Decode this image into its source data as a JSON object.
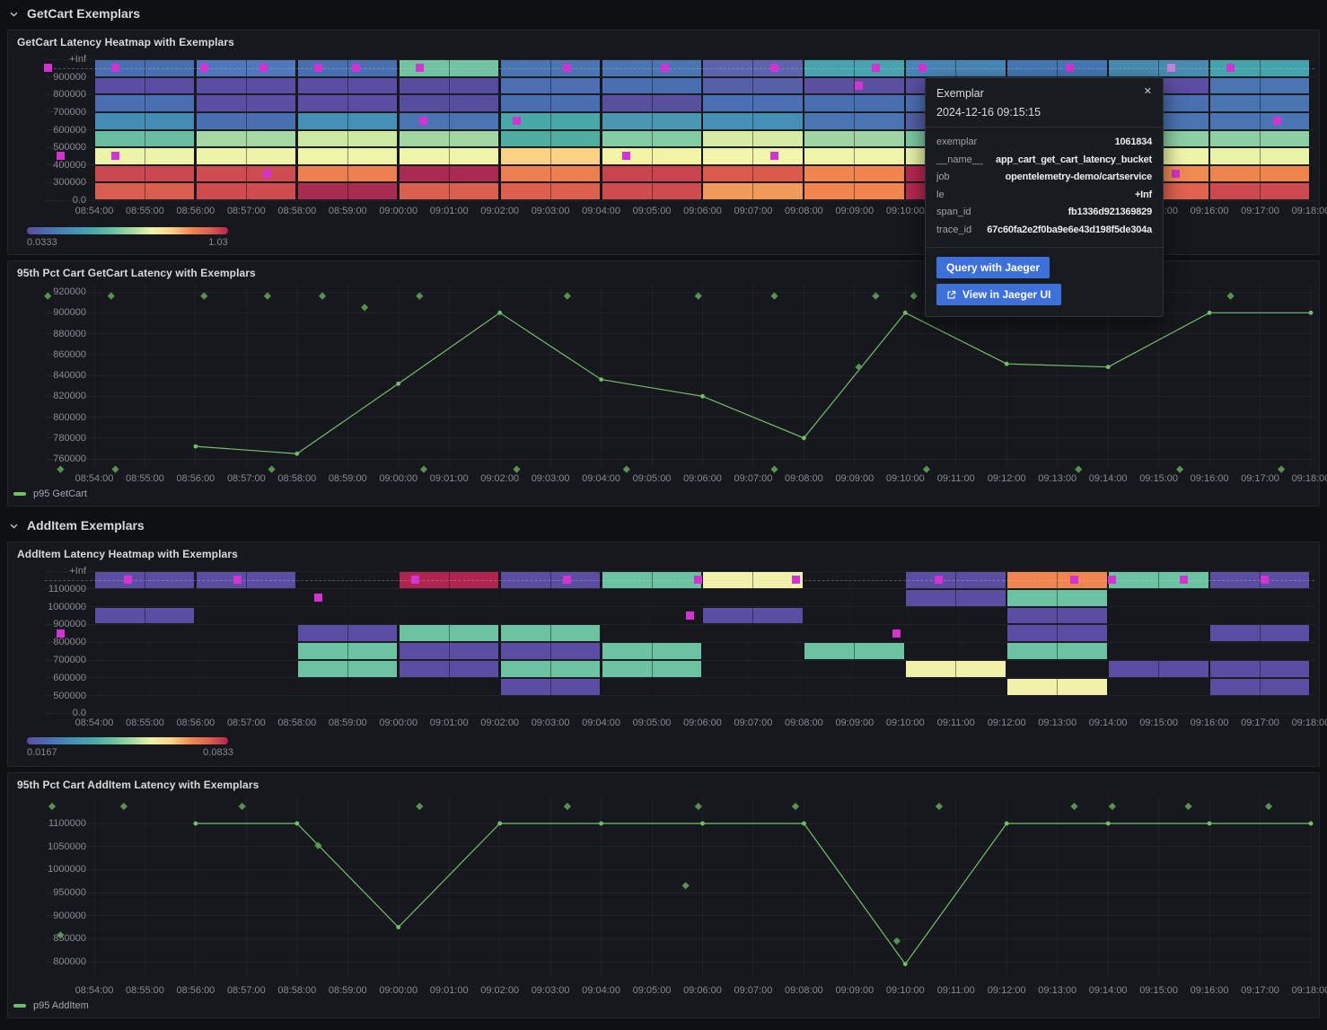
{
  "colors": {
    "background": "#0e1014",
    "panel": "#16181d",
    "exemplar": "#d333d3",
    "exemplar_highlight": "#c77fd9",
    "exemplar_diamond": "#5f9e57",
    "series_green": "#73bf69",
    "button_blue": "#3d71d9"
  },
  "sections": [
    {
      "title": "GetCart Exemplars"
    },
    {
      "title": "AddItem Exemplars"
    }
  ],
  "tooltip": {
    "title": "Exemplar",
    "close_glyph": "✕",
    "timestamp": "2024-12-16 09:15:15",
    "fields": [
      {
        "key": "exemplar",
        "value": "1061834"
      },
      {
        "key": "__name__",
        "value": "app_cart_get_cart_latency_bucket"
      },
      {
        "key": "job",
        "value": "opentelemetry-demo/cartservice"
      },
      {
        "key": "le",
        "value": "+Inf"
      },
      {
        "key": "span_id",
        "value": "fb1336d921369829"
      },
      {
        "key": "trace_id",
        "value": "67c60fa2e2f0ba9e6e43d198f5de304a"
      }
    ],
    "buttons": [
      {
        "label": "Query with Jaeger"
      },
      {
        "label": "View in Jaeger UI",
        "icon": "external-link-icon"
      }
    ]
  },
  "chart_data": [
    {
      "id": "getcart_heatmap",
      "type": "heatmap",
      "title": "GetCart Latency Heatmap with Exemplars",
      "y_band_labels": [
        "+Inf",
        "900000",
        "800000",
        "700000",
        "600000",
        "500000",
        "400000",
        "300000",
        "0.0"
      ],
      "x_ticks": [
        "08:54:00",
        "08:55:00",
        "08:56:00",
        "08:57:00",
        "08:58:00",
        "08:59:00",
        "09:00:00",
        "09:01:00",
        "09:02:00",
        "09:03:00",
        "09:04:00",
        "09:05:00",
        "09:06:00",
        "09:07:00",
        "09:08:00",
        "09:09:00",
        "09:10:00",
        "09:11:00",
        "09:12:00",
        "09:13:00",
        "09:14:00",
        "09:15:00",
        "09:16:00",
        "09:17:00",
        "09:18:00"
      ],
      "column_minutes": 2,
      "scale": {
        "min": "0.0333",
        "max": "1.03"
      },
      "columns": [
        {
          "start": "08:54",
          "colors": [
            "#4a6fb1",
            "#5b4ea2",
            "#4a6fb1",
            "#458cb5",
            "#69bda0",
            "#edf4a7",
            "#cb4752",
            "#da5e4f"
          ]
        },
        {
          "start": "08:56",
          "colors": [
            "#5077b9",
            "#5b4ea2",
            "#5b4ea2",
            "#4a6fb1",
            "#a5d8a3",
            "#edf4a7",
            "#ce4c50",
            "#ce4c50"
          ]
        },
        {
          "start": "08:58",
          "colors": [
            "#4a6fb1",
            "#5b4ea2",
            "#5b4ea2",
            "#4590b5",
            "#cde9a1",
            "#eef5a9",
            "#ec8050",
            "#a82b50"
          ]
        },
        {
          "start": "09:00",
          "colors": [
            "#71c3a2",
            "#574d9e",
            "#574d9e",
            "#4b74b2",
            "#a2d6a2",
            "#eef5a9",
            "#aa2b51",
            "#da5f4e"
          ]
        },
        {
          "start": "09:02",
          "colors": [
            "#4b74b2",
            "#4b6fb0",
            "#4a6fb0",
            "#48a8a8",
            "#4fae9f",
            "#fbd183",
            "#ec7e4f",
            "#dd5f4d"
          ]
        },
        {
          "start": "09:04",
          "colors": [
            "#4b74b2",
            "#4a6fb1",
            "#584f9f",
            "#4a97b2",
            "#82cba3",
            "#f4f3a5",
            "#c9444f",
            "#ce4c4e"
          ]
        },
        {
          "start": "09:06",
          "colors": [
            "#5c64ad",
            "#5560a8",
            "#4b6fb3",
            "#4590b5",
            "#d5eca2",
            "#f2f6ad",
            "#da5a4c",
            "#f09a5c"
          ]
        },
        {
          "start": "09:08",
          "colors": [
            "#47a3ad",
            "#5b4fa0",
            "#4a6fb1",
            "#4b74b2",
            "#9ed5a2",
            "#eef5a9",
            "#f0854f",
            "#f0854f"
          ]
        },
        {
          "start": "09:10",
          "colors": [
            "#4886b8",
            "#584f9f",
            "#4a70b0",
            "#5560a8",
            "#7cc8a2",
            "#e8f2a6",
            "#b5294e",
            "#b5294e"
          ]
        },
        {
          "start": "09:12",
          "colors": [
            "#4577b3",
            "#5b4ea2",
            "#4a6fb1",
            "#4590b5",
            "#8ccfa2",
            "#eef5a9",
            "#e0634e",
            "#d0504f"
          ]
        },
        {
          "start": "09:14",
          "colors": [
            "#478cb0",
            "#5b4ea2",
            "#4a6fb1",
            "#4a74b2",
            "#8ccfa2",
            "#eef5a9",
            "#ef8b51",
            "#e0634e"
          ]
        },
        {
          "start": "09:16",
          "colors": [
            "#45a3ab",
            "#4a74b2",
            "#4a74b2",
            "#4a74b2",
            "#8ccfa2",
            "#e9f3a6",
            "#ee854f",
            "#cc4a4f"
          ]
        }
      ],
      "exemplars": [
        {
          "t": "08:53:05",
          "band": 0
        },
        {
          "t": "08:54:25",
          "band": 0
        },
        {
          "t": "08:56:10",
          "band": 0
        },
        {
          "t": "08:57:20",
          "band": 0
        },
        {
          "t": "08:58:25",
          "band": 0
        },
        {
          "t": "08:59:10",
          "band": 0
        },
        {
          "t": "09:00:25",
          "band": 0
        },
        {
          "t": "09:03:20",
          "band": 0
        },
        {
          "t": "09:05:15",
          "band": 0
        },
        {
          "t": "09:07:25",
          "band": 0
        },
        {
          "t": "09:09:25",
          "band": 0
        },
        {
          "t": "09:10:20",
          "band": 0
        },
        {
          "t": "09:13:15",
          "band": 0
        },
        {
          "t": "09:15:15",
          "band": 0,
          "highlight": true
        },
        {
          "t": "09:16:25",
          "band": 0
        },
        {
          "t": "08:53:20",
          "band": 5
        },
        {
          "t": "08:54:25",
          "band": 5
        },
        {
          "t": "08:57:25",
          "band": 6
        },
        {
          "t": "09:00:30",
          "band": 3
        },
        {
          "t": "09:02:20",
          "band": 3
        },
        {
          "t": "09:04:30",
          "band": 5
        },
        {
          "t": "09:07:25",
          "band": 5
        },
        {
          "t": "09:09:05",
          "band": 1
        },
        {
          "t": "09:15:20",
          "band": 6
        },
        {
          "t": "09:17:20",
          "band": 3
        }
      ]
    },
    {
      "id": "p95_getcart",
      "type": "line",
      "title": "95th Pct Cart GetCart Latency with Exemplars",
      "yticks": [
        "920000",
        "900000",
        "880000",
        "860000",
        "840000",
        "820000",
        "800000",
        "780000",
        "760000"
      ],
      "x_ticks": [
        "08:54:00",
        "08:55:00",
        "08:56:00",
        "08:57:00",
        "08:58:00",
        "08:59:00",
        "09:00:00",
        "09:01:00",
        "09:02:00",
        "09:03:00",
        "09:04:00",
        "09:05:00",
        "09:06:00",
        "09:07:00",
        "09:08:00",
        "09:09:00",
        "09:10:00",
        "09:11:00",
        "09:12:00",
        "09:13:00",
        "09:14:00",
        "09:15:00",
        "09:16:00",
        "09:17:00",
        "09:18:00"
      ],
      "series": [
        {
          "name": "p95 GetCart",
          "color": "#73bf69",
          "points": [
            {
              "t": "08:56:00",
              "v": 772000
            },
            {
              "t": "08:58:00",
              "v": 765000
            },
            {
              "t": "09:00:00",
              "v": 832000
            },
            {
              "t": "09:02:00",
              "v": 900000
            },
            {
              "t": "09:04:00",
              "v": 836000
            },
            {
              "t": "09:06:00",
              "v": 820000
            },
            {
              "t": "09:08:00",
              "v": 780000
            },
            {
              "t": "09:10:00",
              "v": 900000
            },
            {
              "t": "09:12:00",
              "v": 851000
            },
            {
              "t": "09:14:00",
              "v": 848000
            },
            {
              "t": "09:16:00",
              "v": 900000
            },
            {
              "t": "09:18:00",
              "v": 900000
            }
          ]
        }
      ],
      "exemplars": [
        {
          "t": "08:53:05",
          "v": 916000
        },
        {
          "t": "08:54:20",
          "v": 916000
        },
        {
          "t": "08:56:10",
          "v": 916000
        },
        {
          "t": "08:57:25",
          "v": 916000
        },
        {
          "t": "08:58:30",
          "v": 916000
        },
        {
          "t": "09:00:25",
          "v": 916000
        },
        {
          "t": "09:03:20",
          "v": 916000
        },
        {
          "t": "09:05:55",
          "v": 916000
        },
        {
          "t": "09:07:25",
          "v": 916000
        },
        {
          "t": "09:09:25",
          "v": 916000
        },
        {
          "t": "09:10:10",
          "v": 916000
        },
        {
          "t": "09:16:25",
          "v": 916000
        },
        {
          "t": "08:59:20",
          "v": 905000
        },
        {
          "t": "09:09:05",
          "v": 848000
        },
        {
          "t": "08:53:20",
          "v": 750000
        },
        {
          "t": "08:54:25",
          "v": 750000
        },
        {
          "t": "08:57:30",
          "v": 750000
        },
        {
          "t": "09:00:30",
          "v": 750000
        },
        {
          "t": "09:02:20",
          "v": 750000
        },
        {
          "t": "09:04:30",
          "v": 750000
        },
        {
          "t": "09:07:25",
          "v": 750000
        },
        {
          "t": "09:10:25",
          "v": 750000
        },
        {
          "t": "09:13:25",
          "v": 750000
        },
        {
          "t": "09:15:25",
          "v": 750000
        },
        {
          "t": "09:17:25",
          "v": 750000
        }
      ]
    },
    {
      "id": "additem_heatmap",
      "type": "heatmap",
      "title": "AddItem Latency Heatmap with Exemplars",
      "y_band_labels": [
        "+Inf",
        "1100000",
        "1000000",
        "900000",
        "800000",
        "700000",
        "600000",
        "500000",
        "0.0"
      ],
      "x_ticks": [
        "08:54:00",
        "08:55:00",
        "08:56:00",
        "08:57:00",
        "08:58:00",
        "08:59:00",
        "09:00:00",
        "09:01:00",
        "09:02:00",
        "09:03:00",
        "09:04:00",
        "09:05:00",
        "09:06:00",
        "09:07:00",
        "09:08:00",
        "09:09:00",
        "09:10:00",
        "09:11:00",
        "09:12:00",
        "09:13:00",
        "09:14:00",
        "09:15:00",
        "09:16:00",
        "09:17:00",
        "09:18:00"
      ],
      "column_minutes": 2,
      "scale": {
        "min": "0.0167",
        "max": "0.0833"
      },
      "columns": [
        {
          "start": "08:54",
          "colors": [
            "#5b4ea2",
            null,
            "#5b4ea2",
            null,
            null,
            null,
            null,
            null
          ]
        },
        {
          "start": "08:56",
          "colors": [
            "#5b4ea2",
            null,
            null,
            null,
            null,
            null,
            null,
            null
          ]
        },
        {
          "start": "08:58",
          "colors": [
            null,
            null,
            null,
            "#5b4ea2",
            "#6cc3a1",
            "#6cc3a1",
            null,
            null
          ]
        },
        {
          "start": "09:00",
          "colors": [
            "#b0254f",
            null,
            null,
            "#6cc3a1",
            "#5b4ea2",
            "#5b4ea2",
            null,
            null
          ]
        },
        {
          "start": "09:02",
          "colors": [
            "#5b4ea2",
            null,
            null,
            "#6cc3a1",
            "#5b4ea2",
            "#6cc3a1",
            "#5b4ea2",
            null
          ]
        },
        {
          "start": "09:04",
          "colors": [
            "#6cc3a1",
            null,
            null,
            null,
            "#6cc3a1",
            "#6cc3a1",
            null,
            null
          ]
        },
        {
          "start": "09:06",
          "colors": [
            "#f2f1a9",
            null,
            "#5b4ea2",
            null,
            null,
            null,
            null,
            null
          ]
        },
        {
          "start": "09:08",
          "colors": [
            null,
            null,
            null,
            null,
            "#6cc3a1",
            null,
            null,
            null
          ]
        },
        {
          "start": "09:10",
          "colors": [
            "#5b4ea2",
            "#5b4ea2",
            null,
            null,
            null,
            "#f2f1a9",
            null,
            null
          ]
        },
        {
          "start": "09:12",
          "colors": [
            "#f0854f",
            "#6cc3a1",
            "#5b4ea2",
            "#5b4ea2",
            "#6cc3a1",
            null,
            "#f2f1a9",
            null
          ]
        },
        {
          "start": "09:14",
          "colors": [
            "#6cc3a1",
            null,
            null,
            null,
            null,
            "#5b4ea2",
            null,
            null
          ]
        },
        {
          "start": "09:16",
          "colors": [
            "#5b4ea2",
            null,
            null,
            "#5b4ea2",
            null,
            "#5b4ea2",
            "#5b4ea2",
            null
          ]
        }
      ],
      "exemplars": [
        {
          "t": "08:54:40",
          "band": 0
        },
        {
          "t": "08:56:50",
          "band": 0
        },
        {
          "t": "09:00:20",
          "band": 0
        },
        {
          "t": "09:03:20",
          "band": 0
        },
        {
          "t": "09:05:55",
          "band": 0
        },
        {
          "t": "09:07:50",
          "band": 0
        },
        {
          "t": "09:10:40",
          "band": 0
        },
        {
          "t": "09:13:20",
          "band": 0
        },
        {
          "t": "09:14:05",
          "band": 0
        },
        {
          "t": "09:15:30",
          "band": 0
        },
        {
          "t": "09:17:05",
          "band": 0
        },
        {
          "t": "08:53:20",
          "band": 3
        },
        {
          "t": "08:58:25",
          "band": 1
        },
        {
          "t": "09:05:45",
          "band": 2
        },
        {
          "t": "09:09:50",
          "band": 3
        }
      ]
    },
    {
      "id": "p95_additem",
      "type": "line",
      "title": "95th Pct Cart AddItem Latency with Exemplars",
      "yticks": [
        "1100000",
        "1050000",
        "1000000",
        "950000",
        "900000",
        "850000",
        "800000"
      ],
      "x_ticks": [
        "08:54:00",
        "08:55:00",
        "08:56:00",
        "08:57:00",
        "08:58:00",
        "08:59:00",
        "09:00:00",
        "09:01:00",
        "09:02:00",
        "09:03:00",
        "09:04:00",
        "09:05:00",
        "09:06:00",
        "09:07:00",
        "09:08:00",
        "09:09:00",
        "09:10:00",
        "09:11:00",
        "09:12:00",
        "09:13:00",
        "09:14:00",
        "09:15:00",
        "09:16:00",
        "09:17:00",
        "09:18:00"
      ],
      "series": [
        {
          "name": "p95 AddItem",
          "color": "#73bf69",
          "points": [
            {
              "t": "08:56:00",
              "v": 1100000
            },
            {
              "t": "08:58:00",
              "v": 1100000
            },
            {
              "t": "09:00:00",
              "v": 875000
            },
            {
              "t": "09:02:00",
              "v": 1100000
            },
            {
              "t": "09:04:00",
              "v": 1100000
            },
            {
              "t": "09:06:00",
              "v": 1100000
            },
            {
              "t": "09:08:00",
              "v": 1100000
            },
            {
              "t": "09:10:00",
              "v": 795000
            },
            {
              "t": "09:12:00",
              "v": 1100000
            },
            {
              "t": "09:14:00",
              "v": 1100000
            },
            {
              "t": "09:16:00",
              "v": 1100000
            },
            {
              "t": "09:18:00",
              "v": 1100000
            }
          ]
        }
      ],
      "exemplars": [
        {
          "t": "08:53:10",
          "v": 1137000
        },
        {
          "t": "08:54:35",
          "v": 1137000
        },
        {
          "t": "08:56:55",
          "v": 1137000
        },
        {
          "t": "09:00:25",
          "v": 1137000
        },
        {
          "t": "09:03:20",
          "v": 1137000
        },
        {
          "t": "09:05:55",
          "v": 1137000
        },
        {
          "t": "09:07:50",
          "v": 1137000
        },
        {
          "t": "09:10:40",
          "v": 1137000
        },
        {
          "t": "09:13:20",
          "v": 1137000
        },
        {
          "t": "09:14:05",
          "v": 1137000
        },
        {
          "t": "09:15:35",
          "v": 1137000
        },
        {
          "t": "09:17:10",
          "v": 1137000
        },
        {
          "t": "08:53:20",
          "v": 858000
        },
        {
          "t": "08:58:25",
          "v": 1052000
        },
        {
          "t": "09:05:40",
          "v": 965000
        },
        {
          "t": "09:09:50",
          "v": 845000
        }
      ]
    }
  ]
}
